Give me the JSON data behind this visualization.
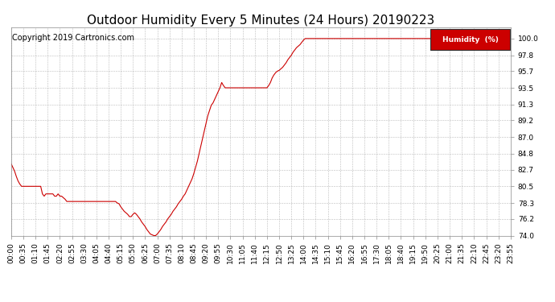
{
  "title": "Outdoor Humidity Every 5 Minutes (24 Hours) 20190223",
  "copyright": "Copyright 2019 Cartronics.com",
  "legend_label": "Humidity  (%)",
  "line_color": "#cc0000",
  "background_color": "#ffffff",
  "grid_color": "#aaaaaa",
  "ylim": [
    74.0,
    101.5
  ],
  "yticks": [
    74.0,
    76.2,
    78.3,
    80.5,
    82.7,
    84.8,
    87.0,
    89.2,
    91.3,
    93.5,
    95.7,
    97.8,
    100.0
  ],
  "ylabel_color": "#cc0000",
  "title_color": "#000000",
  "title_fontsize": 11,
  "copyright_fontsize": 7,
  "tick_fontsize": 6.5,
  "humidity_data": [
    83.5,
    83.0,
    82.5,
    81.8,
    81.2,
    80.8,
    80.5,
    80.5,
    80.5,
    80.5,
    80.5,
    80.5,
    80.5,
    80.5,
    80.5,
    80.5,
    80.5,
    80.5,
    79.5,
    79.2,
    79.5,
    79.5,
    79.5,
    79.5,
    79.5,
    79.2,
    79.2,
    79.5,
    79.2,
    79.2,
    79.0,
    78.8,
    78.5,
    78.5,
    78.5,
    78.5,
    78.5,
    78.5,
    78.5,
    78.5,
    78.5,
    78.5,
    78.5,
    78.5,
    78.5,
    78.5,
    78.5,
    78.5,
    78.5,
    78.5,
    78.5,
    78.5,
    78.5,
    78.5,
    78.5,
    78.5,
    78.5,
    78.5,
    78.5,
    78.5,
    78.5,
    78.3,
    78.2,
    77.8,
    77.5,
    77.2,
    77.0,
    76.8,
    76.5,
    76.5,
    76.8,
    77.0,
    76.8,
    76.5,
    76.2,
    75.8,
    75.5,
    75.2,
    74.8,
    74.5,
    74.2,
    74.1,
    74.0,
    74.0,
    74.2,
    74.5,
    74.8,
    75.2,
    75.5,
    75.8,
    76.2,
    76.5,
    76.8,
    77.2,
    77.5,
    77.8,
    78.2,
    78.5,
    78.8,
    79.2,
    79.5,
    80.0,
    80.5,
    81.0,
    81.5,
    82.2,
    83.0,
    83.8,
    84.8,
    85.8,
    86.8,
    87.8,
    88.8,
    89.8,
    90.5,
    91.2,
    91.5,
    92.0,
    92.5,
    93.0,
    93.5,
    94.2,
    93.8,
    93.5,
    93.5,
    93.5,
    93.5,
    93.5,
    93.5,
    93.5,
    93.5,
    93.5,
    93.5,
    93.5,
    93.5,
    93.5,
    93.5,
    93.5,
    93.5,
    93.5,
    93.5,
    93.5,
    93.5,
    93.5,
    93.5,
    93.5,
    93.5,
    93.5,
    93.8,
    94.2,
    94.8,
    95.2,
    95.5,
    95.7,
    95.8,
    96.0,
    96.2,
    96.5,
    96.8,
    97.2,
    97.5,
    97.8,
    98.2,
    98.5,
    98.8,
    99.0,
    99.2,
    99.5,
    99.8,
    100.0,
    100.0,
    100.0,
    100.0,
    100.0,
    100.0,
    100.0,
    100.0,
    100.0,
    100.0,
    100.0,
    100.0,
    100.0,
    100.0,
    100.0,
    100.0,
    100.0,
    100.0,
    100.0,
    100.0,
    100.0,
    100.0,
    100.0,
    100.0,
    100.0,
    100.0,
    100.0,
    100.0,
    100.0,
    100.0,
    100.0,
    100.0,
    100.0,
    100.0,
    100.0,
    100.0,
    100.0,
    100.0,
    100.0,
    100.0,
    100.0,
    100.0,
    100.0,
    100.0,
    100.0,
    100.0,
    100.0,
    100.0,
    100.0,
    100.0,
    100.0,
    100.0,
    100.0,
    100.0,
    100.0,
    100.0,
    100.0,
    100.0,
    100.0,
    100.0,
    100.0,
    100.0,
    100.0,
    100.0,
    100.0,
    100.0,
    100.0,
    100.0,
    100.0,
    100.0,
    100.0,
    100.0,
    100.0,
    100.0,
    100.0,
    100.0,
    100.0,
    100.0,
    100.0,
    100.0,
    100.0,
    100.0,
    100.0,
    100.0,
    100.0,
    100.0,
    100.0,
    100.0,
    100.0,
    100.0,
    100.0,
    100.0,
    100.0,
    100.0,
    100.0,
    100.0,
    100.0,
    100.0,
    100.0,
    100.0,
    100.0,
    100.0,
    100.0,
    100.0,
    100.0,
    100.0,
    100.0,
    100.0,
    100.0,
    100.0,
    100.0,
    100.0,
    100.0,
    100.0,
    100.0,
    100.0,
    100.0,
    100.0,
    100.0
  ],
  "xtick_labels": [
    "00:00",
    "00:35",
    "01:10",
    "01:45",
    "02:20",
    "02:55",
    "03:30",
    "04:05",
    "04:40",
    "05:15",
    "05:50",
    "06:25",
    "07:00",
    "07:35",
    "08:10",
    "08:45",
    "09:20",
    "09:55",
    "10:30",
    "11:05",
    "11:40",
    "12:15",
    "12:50",
    "13:25",
    "14:00",
    "14:35",
    "15:10",
    "15:45",
    "16:20",
    "16:55",
    "17:30",
    "18:05",
    "18:40",
    "19:15",
    "19:50",
    "20:25",
    "21:00",
    "21:35",
    "22:10",
    "22:45",
    "23:20",
    "23:55"
  ]
}
